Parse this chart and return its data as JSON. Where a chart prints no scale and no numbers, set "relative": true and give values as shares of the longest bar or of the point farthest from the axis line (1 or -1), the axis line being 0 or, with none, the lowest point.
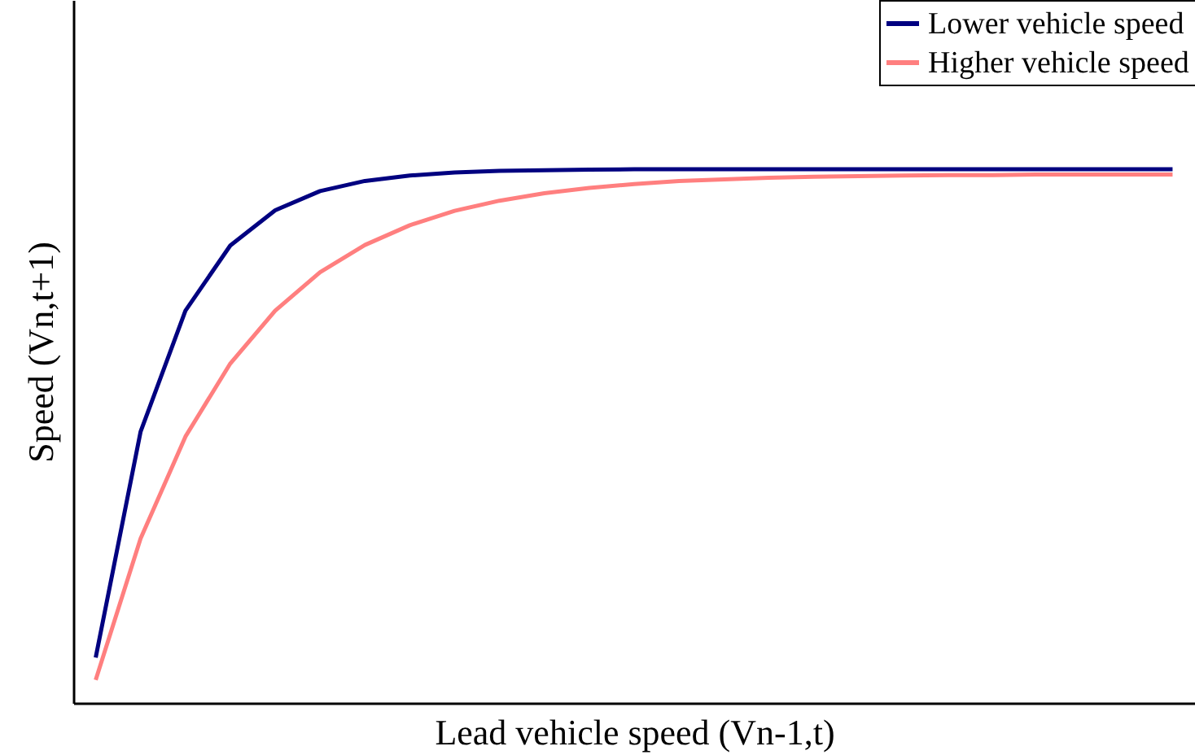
{
  "chart_data": {
    "type": "line",
    "relative": true,
    "xlabel": "Lead vehicle speed (Vn-1,t)",
    "ylabel": "Speed (Vn,t+1)",
    "legend": "top right",
    "grid": false,
    "marker": "none",
    "line_style": "solid",
    "categories": [
      null,
      null,
      null,
      null,
      null,
      null,
      null,
      null,
      null,
      null,
      null,
      null,
      null,
      null,
      null,
      null,
      null,
      null,
      null,
      null,
      null,
      null,
      null,
      null,
      null
    ],
    "series": [
      {
        "name": "Lower vehicle speed",
        "color": "#000080",
        "values": [
          0.085,
          0.508,
          0.735,
          0.857,
          0.923,
          0.959,
          0.978,
          0.988,
          0.994,
          0.997,
          0.998,
          0.999,
          1,
          1,
          1,
          1,
          1,
          1,
          1,
          1,
          1,
          1,
          1,
          1,
          1
        ]
      },
      {
        "name": "Higher vehicle speed",
        "color": "#ff7f7f",
        "values": [
          0.043,
          0.308,
          0.499,
          0.636,
          0.735,
          0.807,
          0.858,
          0.895,
          0.922,
          0.941,
          0.955,
          0.965,
          0.972,
          0.978,
          0.981,
          0.984,
          0.986,
          0.987,
          0.988,
          0.989,
          0.989,
          0.99,
          0.99,
          0.99,
          0.99
        ]
      }
    ]
  }
}
